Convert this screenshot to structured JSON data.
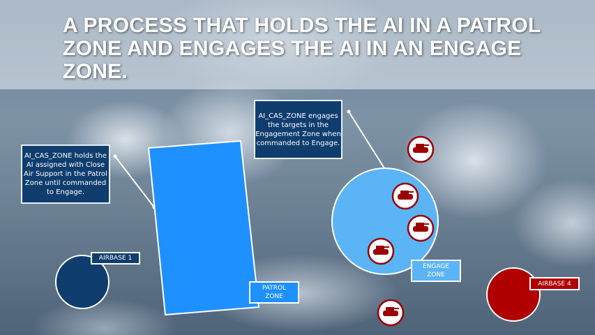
{
  "title": "A PROCESS THAT HOLDS THE AI IN A PATROL ZONE AND ENGAGES THE AI IN AN ENGAGE ZONE.",
  "info_patrol": "AI_CAS_ZONE holds the AI assigned with Close Air Support in the Patrol Zone until commanded to Engage.",
  "info_engage": "AI_CAS_ZONE engages the targets in the Engagement Zone when commanded to Engage.",
  "labels": {
    "airbase1": "AIRBASE 1",
    "airbase4": "AIRBASE 4",
    "patrol_zone": "PATROL ZONE",
    "engage_zone": "ENGAGE ZONE"
  },
  "icons": {
    "target": "tank-icon"
  },
  "colors": {
    "blue_side": "#0f3d6e",
    "patrol": "#1e90ff",
    "engage": "#5ab4f5",
    "red_side": "#b00000"
  }
}
